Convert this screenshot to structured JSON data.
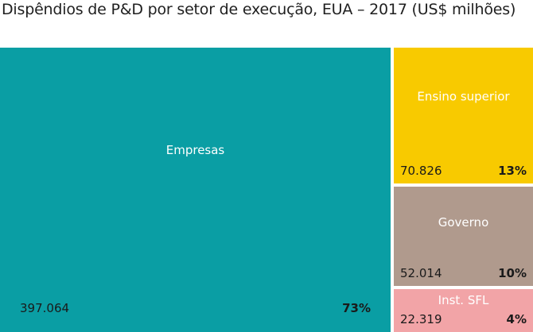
{
  "chart_data": {
    "type": "treemap",
    "title": "Dispêndios de P&D por setor de execução, EUA – 2017 (US$ milhões)",
    "items": [
      {
        "name": "Empresas",
        "value": 397064,
        "value_label": "397.064",
        "percent": 73,
        "percent_label": "73%",
        "color": "#0a9ea4"
      },
      {
        "name": "Ensino superior",
        "value": 70826,
        "value_label": "70.826",
        "percent": 13,
        "percent_label": "13%",
        "color": "#f8ca00"
      },
      {
        "name": "Governo",
        "value": 52014,
        "value_label": "52.014",
        "percent": 10,
        "percent_label": "10%",
        "color": "#b09a8d"
      },
      {
        "name": "Inst. SFL",
        "value": 22319,
        "value_label": "22.319",
        "percent": 4,
        "percent_label": "4%",
        "color": "#f2a4a7"
      }
    ]
  }
}
